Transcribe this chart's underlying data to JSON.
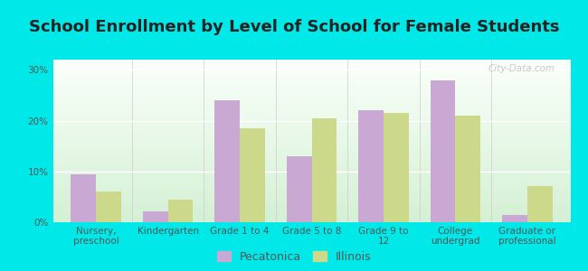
{
  "title": "School Enrollment by Level of School for Female Students",
  "categories": [
    "Nursery,\npreschool",
    "Kindergarten",
    "Grade 1 to 4",
    "Grade 5 to 8",
    "Grade 9 to\n12",
    "College\nundergrad",
    "Graduate or\nprofessional"
  ],
  "pecatonica": [
    9.5,
    2.2,
    24.0,
    13.0,
    22.0,
    28.0,
    1.5
  ],
  "illinois": [
    6.0,
    4.5,
    18.5,
    20.5,
    21.5,
    21.0,
    7.2
  ],
  "pecatonica_color": "#c9a8d4",
  "illinois_color": "#ccd98a",
  "background_color": "#00e8e8",
  "plot_bg_color": "#e8f8e8",
  "ylim": [
    0,
    32
  ],
  "yticks": [
    0,
    10,
    20,
    30
  ],
  "ytick_labels": [
    "0%",
    "10%",
    "20%",
    "30%"
  ],
  "bar_width": 0.35,
  "title_fontsize": 13,
  "tick_fontsize": 7.5,
  "legend_fontsize": 9,
  "watermark": "City-Data.com"
}
